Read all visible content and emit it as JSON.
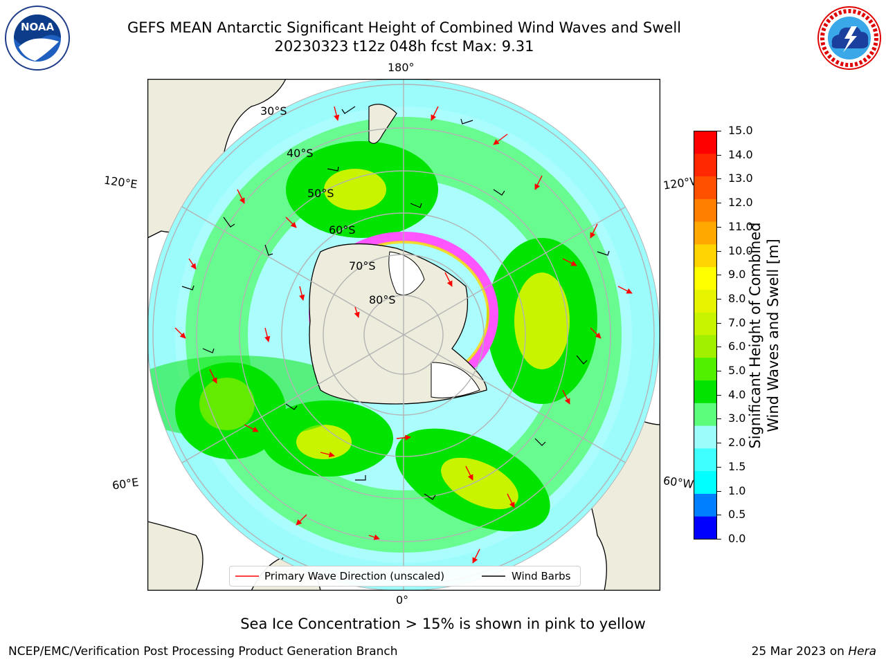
{
  "header": {
    "title_line1": "GEFS MEAN Antarctic Significant Height of Combined Wind Waves and Swell",
    "title_line2": "20230323 t12z 048h fcst   Max: 9.31"
  },
  "logos": {
    "left": "NOAA",
    "left_ring_text": "NATIONAL OCEANIC AND ATMOSPHERIC ADMINISTRATION · U.S. DEPARTMENT OF COMMERCE",
    "right_ring_text": "NATIONAL WEATHER SERVICE"
  },
  "map": {
    "longitude_labels": {
      "top": "180°",
      "bottom": "0°",
      "upper_left": "120°E",
      "lower_left": "60°E",
      "upper_right": "120°W",
      "lower_right": "60°W"
    },
    "latitude_labels": [
      "30°S",
      "40°S",
      "50°S",
      "60°S",
      "70°S",
      "80°S"
    ],
    "colors": {
      "land": "#eeecdc",
      "ocean_low": "#9cfcfc",
      "ocean_mid": "#5cfc7c",
      "wave_high": "#00e400",
      "peak": "#c8f400",
      "ice": "#ff55ff",
      "arrow": "#ff0000",
      "barb": "#000000"
    }
  },
  "legend": {
    "primary_wave": "Primary Wave Direction (unscaled)",
    "wind_barbs": "Wind Barbs"
  },
  "colorbar": {
    "label_line1": "Significant Height of Combined",
    "label_line2": "Wind Waves and Swell [m]",
    "ticks": [
      "15.0",
      "14.0",
      "13.0",
      "12.0",
      "11.0",
      "10.0",
      "9.0",
      "8.0",
      "7.0",
      "6.0",
      "5.0",
      "4.0",
      "3.0",
      "2.0",
      "1.5",
      "1.0",
      "0.5",
      "0.0"
    ],
    "colors": [
      "#0000ff",
      "#0080ff",
      "#00ffff",
      "#40ffff",
      "#9cfcfc",
      "#5cfc7c",
      "#00e400",
      "#50f000",
      "#a0f000",
      "#c8f400",
      "#e6f400",
      "#ffff00",
      "#ffd400",
      "#ffa800",
      "#ff8000",
      "#ff5000",
      "#ff2800",
      "#ff0000"
    ]
  },
  "footer": {
    "caption": "Sea Ice Concentration > 15% is shown in pink to yellow",
    "left": "NCEP/EMC/Verification Post Processing Product Generation Branch",
    "right_prefix": "25 Mar 2023 on ",
    "right_italic": "Hera"
  }
}
